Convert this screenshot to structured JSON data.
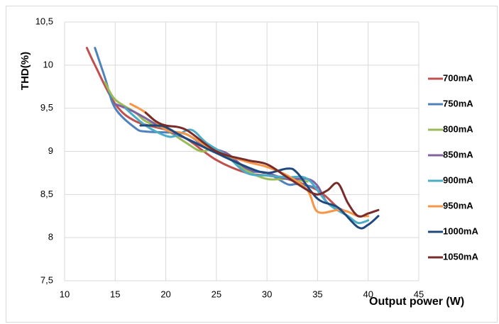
{
  "chart_data": {
    "type": "line",
    "xlabel": "Output power (W)",
    "ylabel": "THD(%)",
    "xlim": [
      10,
      45
    ],
    "xticks": [
      10,
      15,
      20,
      25,
      30,
      35,
      40,
      45
    ],
    "ylim": [
      7.5,
      10.5
    ],
    "yticks": [
      {
        "value": 7.5,
        "label": "7,5"
      },
      8,
      {
        "value": 8.5,
        "label": "8,5"
      },
      9,
      {
        "value": 9.5,
        "label": "9,5"
      },
      10,
      {
        "value": 10.5,
        "label": "10,5"
      }
    ],
    "grid": true,
    "legend": "right",
    "series": [
      {
        "name": "700mA",
        "color": "#c0504d",
        "x": [
          12.2,
          13,
          15,
          17,
          20,
          22,
          25,
          28,
          30,
          32,
          35,
          37,
          38
        ],
        "values": [
          10.2,
          10.0,
          9.55,
          9.35,
          9.25,
          9.15,
          8.9,
          8.75,
          8.72,
          8.68,
          8.55,
          8.35,
          8.3
        ]
      },
      {
        "name": "750mA",
        "color": "#4f81bd",
        "x": [
          13,
          14,
          15,
          17,
          18,
          20,
          22,
          24,
          26,
          28,
          30,
          32,
          33,
          35
        ],
        "values": [
          10.2,
          9.85,
          9.5,
          9.27,
          9.23,
          9.22,
          9.2,
          9.05,
          8.95,
          8.78,
          8.75,
          8.62,
          8.62,
          8.58
        ]
      },
      {
        "name": "800mA",
        "color": "#9bbb59",
        "x": [
          14,
          15,
          17,
          18,
          20,
          22,
          23.5,
          25,
          28,
          30,
          32,
          34
        ],
        "values": [
          9.8,
          9.6,
          9.45,
          9.35,
          9.25,
          9.1,
          9.0,
          9.02,
          8.78,
          8.68,
          8.68,
          8.65
        ]
      },
      {
        "name": "850mA",
        "color": "#8064a2",
        "x": [
          15,
          17,
          20,
          22,
          24,
          26,
          28,
          30,
          32,
          34,
          35,
          36,
          38
        ],
        "values": [
          9.55,
          9.45,
          9.25,
          9.15,
          9.05,
          8.98,
          8.8,
          8.75,
          8.68,
          8.68,
          8.6,
          8.4,
          8.25
        ]
      },
      {
        "name": "900mA",
        "color": "#4bacc6",
        "x": [
          16,
          18,
          20,
          21,
          22.5,
          24,
          26,
          28,
          30,
          32,
          34,
          36,
          38,
          39,
          40
        ],
        "values": [
          9.5,
          9.3,
          9.18,
          9.18,
          9.25,
          9.1,
          8.95,
          8.75,
          8.72,
          8.7,
          8.68,
          8.4,
          8.25,
          8.17,
          8.2
        ]
      },
      {
        "name": "950mA",
        "color": "#f79646",
        "x": [
          16.5,
          18,
          20,
          22,
          25,
          28,
          30,
          32,
          34,
          35,
          37,
          38,
          39,
          40
        ],
        "values": [
          9.55,
          9.45,
          9.25,
          9.2,
          9.0,
          8.88,
          8.82,
          8.72,
          8.55,
          8.3,
          8.32,
          8.3,
          8.25,
          8.25
        ]
      },
      {
        "name": "1000mA",
        "color": "#1f497d",
        "x": [
          17.5,
          19,
          20,
          22,
          25,
          28,
          30,
          32,
          33,
          35,
          37,
          39,
          40,
          41
        ],
        "values": [
          9.3,
          9.3,
          9.28,
          9.15,
          8.98,
          8.82,
          8.75,
          8.8,
          8.75,
          8.45,
          8.35,
          8.12,
          8.15,
          8.25
        ]
      },
      {
        "name": "1050mA",
        "color": "#772c2a",
        "x": [
          18,
          19,
          20,
          22,
          25,
          28,
          30,
          32,
          34,
          35,
          36,
          37,
          38,
          39,
          40,
          41
        ],
        "values": [
          9.45,
          9.35,
          9.3,
          9.25,
          9.0,
          8.9,
          8.85,
          8.7,
          8.55,
          8.5,
          8.55,
          8.63,
          8.4,
          8.25,
          8.28,
          8.32
        ]
      }
    ]
  }
}
